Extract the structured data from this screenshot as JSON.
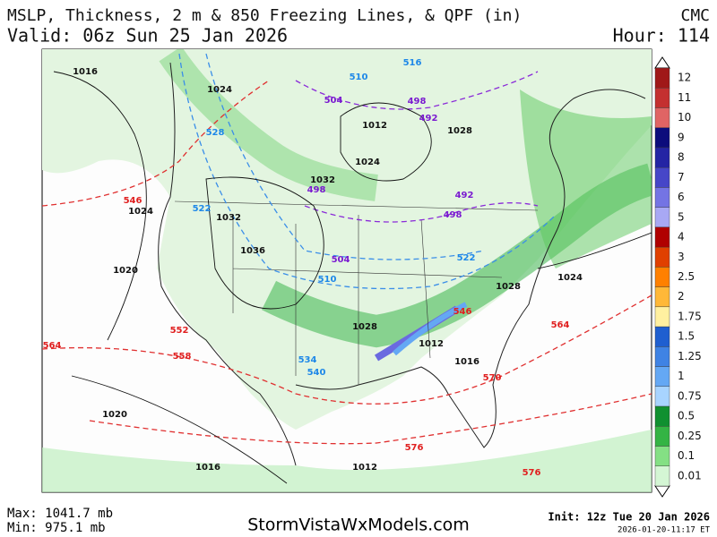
{
  "header": {
    "title": "MSLP, Thickness, 2 m & 850 Freezing Lines, & QPF (in)",
    "model": "CMC",
    "valid": "Valid: 06z Sun 25 Jan 2026",
    "hour": "Hour: 114"
  },
  "colorbar": {
    "levels": [
      {
        "label": "12",
        "color": "#a01818"
      },
      {
        "label": "11",
        "color": "#c43030"
      },
      {
        "label": "10",
        "color": "#e06464"
      },
      {
        "label": "9",
        "color": "#0c0c7c"
      },
      {
        "label": "8",
        "color": "#2424a4"
      },
      {
        "label": "7",
        "color": "#4646c8"
      },
      {
        "label": "6",
        "color": "#7474e4"
      },
      {
        "label": "5",
        "color": "#a8a8f4"
      },
      {
        "label": "4",
        "color": "#b00000"
      },
      {
        "label": "3",
        "color": "#e04000"
      },
      {
        "label": "2.5",
        "color": "#ff8000"
      },
      {
        "label": "2",
        "color": "#ffb838"
      },
      {
        "label": "1.75",
        "color": "#fff0a0"
      },
      {
        "label": "1.5",
        "color": "#1f5fd0"
      },
      {
        "label": "1.25",
        "color": "#3f83e4"
      },
      {
        "label": "1",
        "color": "#64a8f4"
      },
      {
        "label": "0.75",
        "color": "#a8d4ff"
      },
      {
        "label": "0.5",
        "color": "#109030"
      },
      {
        "label": "0.25",
        "color": "#34b444"
      },
      {
        "label": "0.1",
        "color": "#84e084"
      },
      {
        "label": "0.01",
        "color": "#d4f6d4"
      }
    ]
  },
  "map": {
    "contour_labels": [
      "1016",
      "1024",
      "528",
      "504",
      "498",
      "492",
      "1012",
      "1028",
      "1024",
      "1032",
      "498",
      "492",
      "498",
      "546",
      "1024",
      "522",
      "1032",
      "1036",
      "504",
      "510",
      "1020",
      "522",
      "1028",
      "534",
      "540",
      "552",
      "558",
      "1028",
      "1012",
      "546",
      "564",
      "570",
      "1016",
      "576",
      "1020",
      "1016",
      "1012",
      "576",
      "1024",
      "564",
      "510",
      "516"
    ]
  },
  "footer": {
    "max": "Max: 1041.7 mb",
    "min": "Min: 975.1 mb",
    "site": "StormVistaWxModels.com",
    "init": "Init: 12z Tue 20 Jan 2026",
    "stamp": "2026-01-20-11:17 ET"
  }
}
